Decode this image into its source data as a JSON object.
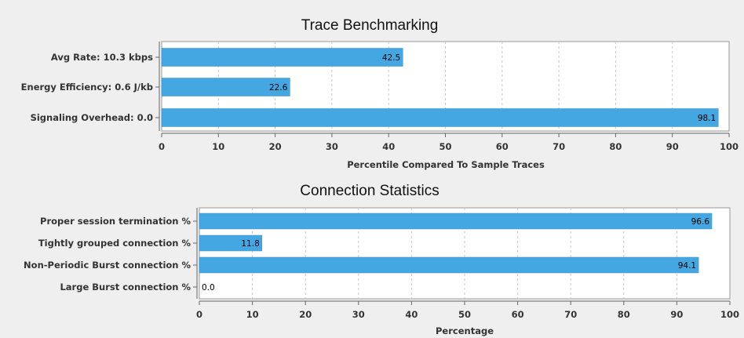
{
  "chart_data": [
    {
      "type": "bar",
      "orientation": "horizontal",
      "title": "Trace Benchmarking",
      "xlabel": "Percentile Compared To Sample Traces",
      "ylabel": "",
      "categories": [
        "Avg Rate: 10.3 kbps",
        "Energy Efficiency: 0.6 J/kb",
        "Signaling Overhead: 0.0"
      ],
      "values": [
        42.5,
        22.6,
        98.1
      ],
      "value_labels": [
        "42.5",
        "22.6",
        "98.1"
      ],
      "xlim": [
        0,
        100
      ],
      "ticks": [
        "0",
        "10",
        "20",
        "30",
        "40",
        "50",
        "60",
        "70",
        "80",
        "90",
        "100"
      ],
      "grid": "vertical dashed",
      "bar_color": "#45a7e2"
    },
    {
      "type": "bar",
      "orientation": "horizontal",
      "title": "Connection Statistics",
      "xlabel": "Percentage",
      "ylabel": "",
      "categories": [
        "Proper session termination %",
        "Tightly grouped connection %",
        "Non-Periodic Burst connection %",
        "Large Burst connection %"
      ],
      "values": [
        96.6,
        11.8,
        94.1,
        0.0
      ],
      "value_labels": [
        "96.6",
        "11.8",
        "94.1",
        "0.0"
      ],
      "xlim": [
        0,
        100
      ],
      "ticks": [
        "0",
        "10",
        "20",
        "30",
        "40",
        "50",
        "60",
        "70",
        "80",
        "90",
        "100"
      ],
      "grid": "vertical dashed",
      "bar_color": "#45a7e2"
    }
  ]
}
